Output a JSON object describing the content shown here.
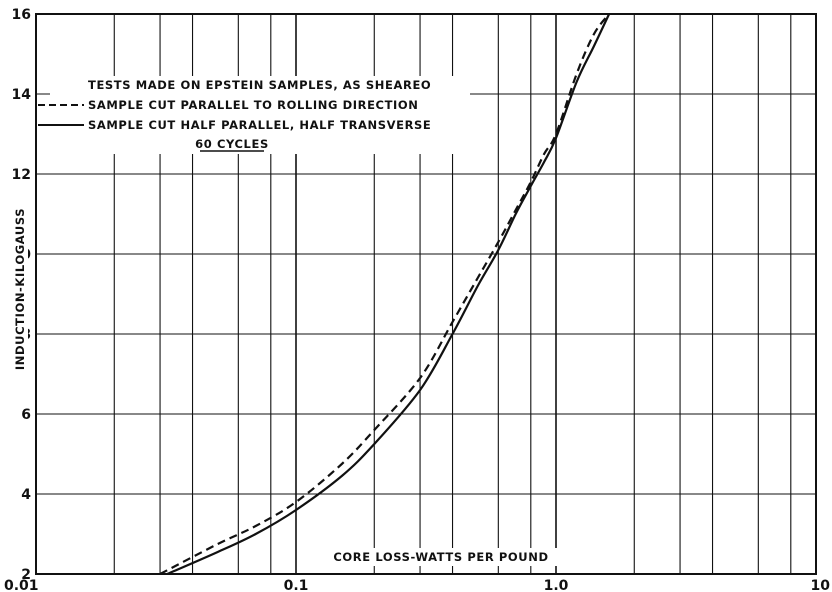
{
  "chart_data": {
    "type": "line",
    "xscale": "log",
    "xlim": [
      0.01,
      10
    ],
    "ylim": [
      2,
      16
    ],
    "xticks": [
      {
        "value": 0.01,
        "label": "0.01"
      },
      {
        "value": 0.1,
        "label": "0.1"
      },
      {
        "value": 1,
        "label": "1.0"
      },
      {
        "value": 10,
        "label": "10"
      }
    ],
    "xgrid": [
      0.02,
      0.03,
      0.04,
      0.06,
      0.08,
      0.1,
      0.2,
      0.3,
      0.4,
      0.6,
      0.8,
      1,
      2,
      3,
      4,
      6,
      8
    ],
    "yticks": [
      2,
      4,
      6,
      8,
      10,
      12,
      14,
      16
    ],
    "grid": true,
    "xlabel": "CORE LOSS-WATTS PER POUND",
    "ylabel": "INDUCTION-KILOGAUSS",
    "legend": {
      "position": "top-left",
      "title": "TESTS MADE ON EPSTEIN SAMPLES, AS SHEAREO",
      "note": "60 CYCLES"
    },
    "series": [
      {
        "name": "SAMPLE CUT PARALLEL TO ROLLING DIRECTION",
        "style": "dashed",
        "points": [
          [
            0.03,
            2.0
          ],
          [
            0.05,
            2.75
          ],
          [
            0.07,
            3.2
          ],
          [
            0.1,
            3.8
          ],
          [
            0.15,
            4.75
          ],
          [
            0.2,
            5.6
          ],
          [
            0.3,
            6.9
          ],
          [
            0.4,
            8.3
          ],
          [
            0.5,
            9.4
          ],
          [
            0.6,
            10.3
          ],
          [
            0.7,
            11.1
          ],
          [
            0.8,
            11.8
          ],
          [
            0.9,
            12.5
          ],
          [
            1.0,
            13.0
          ],
          [
            1.2,
            14.5
          ],
          [
            1.4,
            15.5
          ],
          [
            1.6,
            16.0
          ]
        ]
      },
      {
        "name": "SAMPLE CUT HALF PARALLEL, HALF TRANSVERSE",
        "style": "solid",
        "points": [
          [
            0.032,
            2.0
          ],
          [
            0.05,
            2.55
          ],
          [
            0.07,
            3.0
          ],
          [
            0.1,
            3.6
          ],
          [
            0.15,
            4.45
          ],
          [
            0.2,
            5.25
          ],
          [
            0.3,
            6.6
          ],
          [
            0.4,
            8.0
          ],
          [
            0.5,
            9.2
          ],
          [
            0.6,
            10.1
          ],
          [
            0.7,
            11.0
          ],
          [
            0.8,
            11.7
          ],
          [
            0.9,
            12.3
          ],
          [
            1.0,
            12.9
          ],
          [
            1.2,
            14.3
          ],
          [
            1.4,
            15.2
          ],
          [
            1.6,
            16.0
          ]
        ]
      }
    ]
  }
}
